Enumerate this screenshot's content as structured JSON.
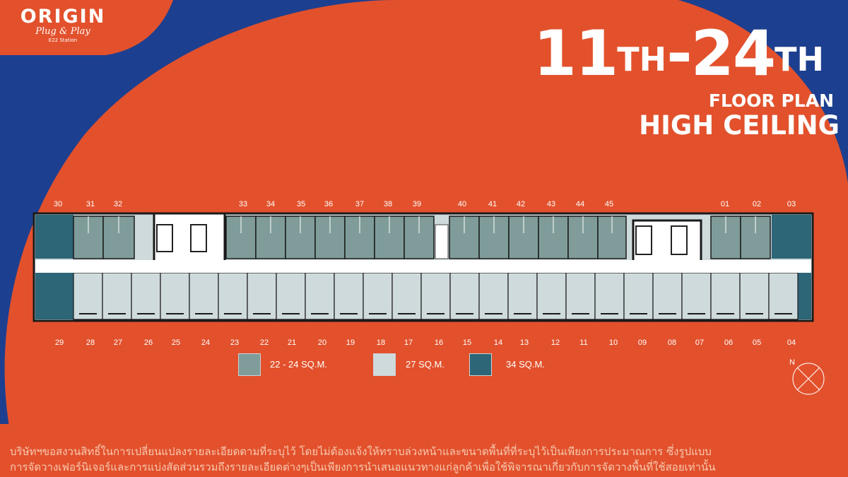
{
  "logo": {
    "main": "ORIGIN",
    "sub": "Plug & Play",
    "station": "E22 Station"
  },
  "title": {
    "from": "11",
    "from_sup": "TH",
    "dash": "-",
    "to": "24",
    "to_sup": "TH",
    "line1": "FLOOR PLAN",
    "line2": "HIGH CEILING"
  },
  "units_top": [
    "30",
    "31",
    "32",
    "33",
    "34",
    "35",
    "36",
    "37",
    "38",
    "39",
    "40",
    "41",
    "42",
    "43",
    "44",
    "45",
    "01",
    "02",
    "03"
  ],
  "units_bottom": [
    "29",
    "28",
    "27",
    "26",
    "25",
    "24",
    "23",
    "22",
    "21",
    "20",
    "19",
    "18",
    "17",
    "16",
    "15",
    "14",
    "13",
    "12",
    "11",
    "10",
    "09",
    "08",
    "07",
    "06",
    "05",
    "04"
  ],
  "legend": [
    {
      "label": "22 - 24 SQ.M.",
      "color": "#7f9c9a"
    },
    {
      "label": "27 SQ.M.",
      "color": "#cfdadd"
    },
    {
      "label": "34 SQ.M.",
      "color": "#2c6677"
    }
  ],
  "compass": {
    "label": "N"
  },
  "disclaimer": {
    "line1": "บริษัทฯขอสงวนสิทธิ์ในการเปลี่ยนแปลงรายละเอียดตามที่ระบุไว้ โดยไม่ต้องแจ้งให้ทราบล่วงหน้าและขนาดพื้นที่ที่ระบุไว้เป็นเพียงการประมาณการ ซึ่งรูปแบบ",
    "line2": "การจัดวางเฟอร์นิเจอร์และการแบ่งสัดส่วนรวมถึงรายละเอียดต่างๆเป็นเพียงการนำเสนอแนวทางแก่ลูกค้าเพื่อใช้พิจารณาเกี่ยวกับการจัดวางพื้นที่ใช้สอยเท่านั้น"
  },
  "colors": {
    "orange": "#e2512c",
    "blue": "#1d3f8f",
    "small": "#7f9c9a",
    "mid": "#cfdadd",
    "large": "#2c6677"
  }
}
